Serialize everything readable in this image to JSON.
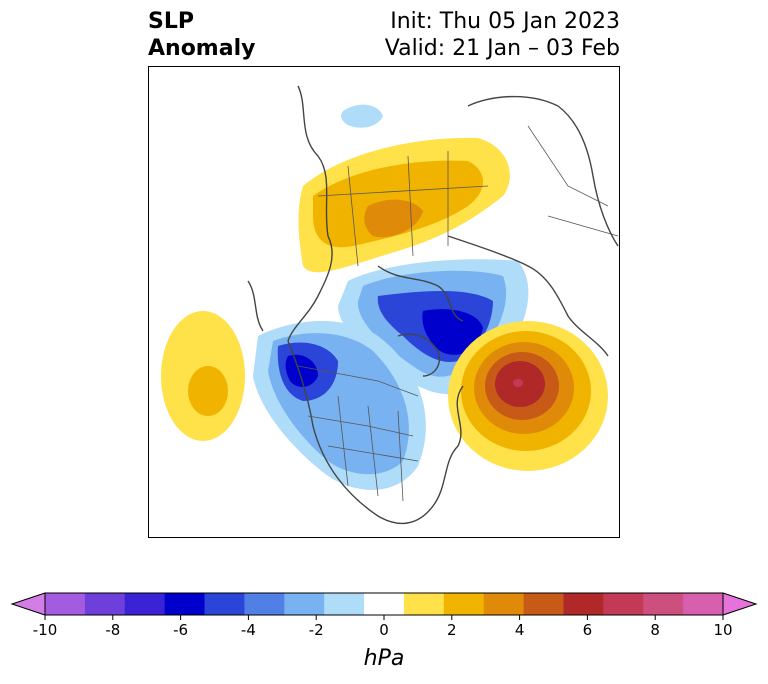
{
  "title": {
    "left_line1": "SLP",
    "left_line2": "Anomaly",
    "init": "Init: Thu 05 Jan 2023",
    "valid": "Valid: 21 Jan – 03 Feb"
  },
  "colorbar": {
    "unit": "hPa",
    "ticks": [
      "-10",
      "-8",
      "-6",
      "-4",
      "-2",
      "0",
      "2",
      "4",
      "6",
      "8",
      "10"
    ],
    "colors": [
      "#d27ee6",
      "#a35be0",
      "#6f3fdc",
      "#3a22d5",
      "#0000cc",
      "#2b45d8",
      "#5080e6",
      "#79b2f0",
      "#afdcf8",
      "#ffffff",
      "#ffe14a",
      "#f0b400",
      "#e08a0a",
      "#c85a18",
      "#b02828",
      "#c23a55",
      "#cc4f7e",
      "#d660ad",
      "#e673da"
    ]
  },
  "map": {
    "anomalies": [
      {
        "name": "siberia-high",
        "sign": "positive",
        "peak_hpa": 4
      },
      {
        "name": "arctic-low",
        "sign": "negative",
        "peak_hpa": -6
      },
      {
        "name": "north-america-low",
        "sign": "negative",
        "peak_hpa": -6
      },
      {
        "name": "north-atlantic-high",
        "sign": "positive",
        "peak_hpa": 6
      },
      {
        "name": "north-pacific-high",
        "sign": "positive",
        "peak_hpa": 2
      },
      {
        "name": "greenland-low-small",
        "sign": "negative",
        "peak_hpa": -2
      }
    ]
  }
}
